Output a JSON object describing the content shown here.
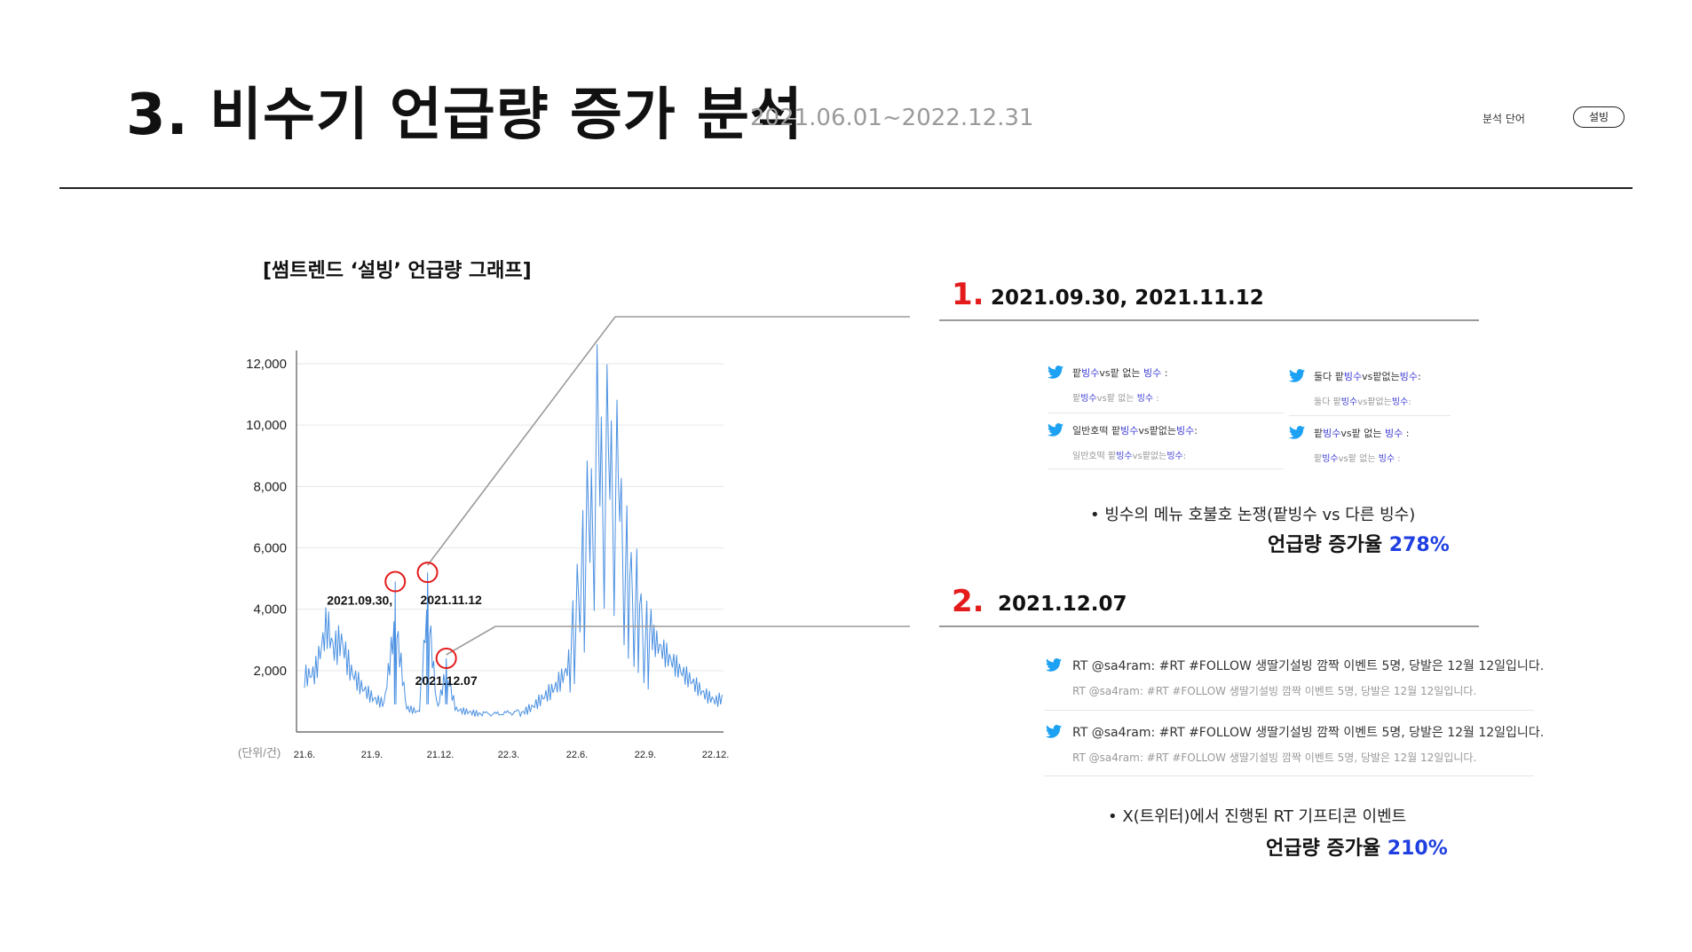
{
  "header": {
    "title": "3. 비수기 언급량 증가 분석",
    "date_range": "2021.06.01~2022.12.31",
    "analysis_word_label": "분석 단어",
    "keyword": "설빙"
  },
  "chart_title": "[썸트렌드 ‘설빙’ 언급량 그래프]",
  "chart_data": {
    "type": "line",
    "title": "[썸트렌드 ‘설빙’ 언급량 그래프]",
    "ylabel": "(단위/건)",
    "ylim": [
      0,
      12000
    ],
    "y_ticks": [
      "12,000",
      "10,000",
      "8,000",
      "6,000",
      "4,000",
      "2,000"
    ],
    "x_ticks": [
      "21.6.",
      "21.9.",
      "21.12.",
      "22.3.",
      "22.6.",
      "22.9.",
      "22.12."
    ],
    "grid": true,
    "annotations": [
      {
        "label": "2021.09.30,",
        "x": "2021-09-30",
        "y": 4900
      },
      {
        "label": "2021.11.12",
        "x": "2021-11-12",
        "y": 5200
      },
      {
        "label": "2021.12.07",
        "x": "2021-12-07",
        "y": 2400
      }
    ],
    "series": [
      {
        "color": "#4a90e2",
        "x": [
          "2021-06-01",
          "2021-06-15",
          "2021-07-01",
          "2021-07-10",
          "2021-07-20",
          "2021-08-01",
          "2021-08-15",
          "2021-09-01",
          "2021-09-15",
          "2021-09-30",
          "2021-10-15",
          "2021-11-01",
          "2021-11-12",
          "2021-11-25",
          "2021-12-07",
          "2021-12-20",
          "2022-01-15",
          "2022-02-15",
          "2022-03-15",
          "2022-04-01",
          "2022-04-15",
          "2022-05-01",
          "2022-05-15",
          "2022-05-25",
          "2022-06-05",
          "2022-06-15",
          "2022-06-25",
          "2022-07-05",
          "2022-07-15",
          "2022-07-25",
          "2022-08-05",
          "2022-08-20",
          "2022-09-01",
          "2022-09-15",
          "2022-10-01",
          "2022-10-15",
          "2022-11-01",
          "2022-11-15",
          "2022-12-01",
          "2022-12-15"
        ],
        "values": [
          2700,
          3000,
          5600,
          4300,
          4800,
          3200,
          2300,
          1600,
          1300,
          4900,
          1000,
          800,
          5200,
          900,
          2400,
          900,
          800,
          700,
          900,
          1300,
          1800,
          2300,
          3000,
          4100,
          6300,
          9000,
          12100,
          11500,
          11300,
          10000,
          7000,
          5500,
          4000,
          3500,
          3000,
          2600,
          2200,
          1800,
          1500,
          1800
        ]
      }
    ]
  },
  "sections": [
    {
      "number": "1.",
      "dates": "2021.09.30, 2021.11.12",
      "tweets": [
        {
          "pre": "팥",
          "hl1": "빙수",
          "mid": "vs팥 없는 ",
          "hl2": "빙수",
          "post": " :"
        },
        {
          "pre": "둘다 팥",
          "hl1": "빙수",
          "mid": "vs팥없는",
          "hl2": "빙수",
          "post": ":"
        },
        {
          "pre": "일반호떡 팥",
          "hl1": "빙수",
          "mid": "vs팥없는",
          "hl2": "빙수",
          "post": ":"
        },
        {
          "pre": "팥",
          "hl1": "빙수",
          "mid": "vs팥 없는 ",
          "hl2": "빙수",
          "post": " :"
        }
      ],
      "bullet": "빙수의 메뉴 호불호 논쟁(팥빙수 vs 다른 빙수)",
      "rate_label": "언급량 증가율",
      "rate_value": "278%"
    },
    {
      "number": "2.",
      "dates": "2021.12.07",
      "rt_main": "RT @sa4ram: #RT #FOLLOW 생딸기설빙 깜짝 이벤트 5명, 당발은 12월 12일입니다.",
      "rt_sub": "RT @sa4ram: #RT #FOLLOW 생딸기설빙 깜짝 이벤트 5명, 당발은 12월 12일입니다.",
      "bullet": "X(트위터)에서 진행된 RT 기프티콘 이벤트",
      "rate_label": "언급량 증가율",
      "rate_value": "210%"
    }
  ],
  "colors": {
    "accent_red": "#e31b1b",
    "accent_blue": "#1f3fe0",
    "line": "#4a90e2",
    "twitter": "#1da1f2"
  }
}
